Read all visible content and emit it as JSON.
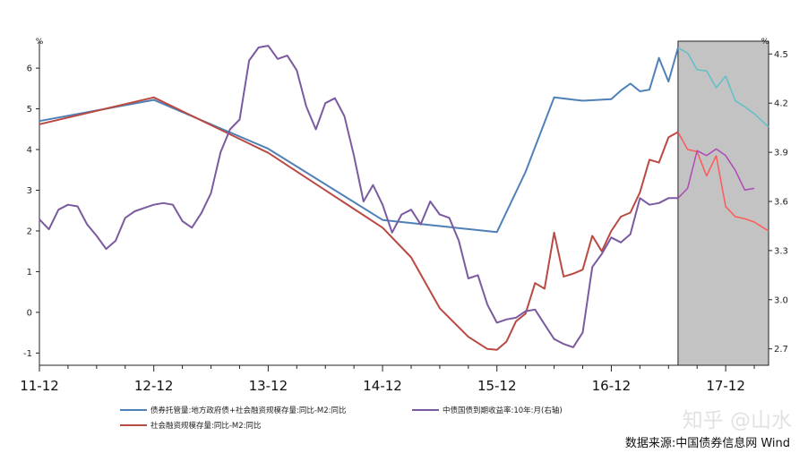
{
  "chart_data": {
    "type": "line",
    "x_labels": [
      "11-12",
      "12-12",
      "13-12",
      "14-12",
      "15-12",
      "16-12",
      "17-12"
    ],
    "left_axis": {
      "unit": "%",
      "min": -1.3,
      "max": 6.75,
      "ticks": [
        -1,
        0,
        1,
        2,
        3,
        4,
        5,
        6
      ]
    },
    "right_axis": {
      "unit": "%",
      "min": 2.6,
      "max": 4.6,
      "ticks": [
        2.7,
        3.0,
        3.3,
        3.6,
        3.9,
        4.2,
        4.5
      ]
    },
    "x_range": [
      0,
      76.5
    ],
    "shaded_from_x": 67,
    "colors": {
      "blue": "#4f81b8",
      "red": "#b94a43",
      "purple": "#7b5aa0",
      "shade": "#c3c3c3",
      "shade_blue": "#5fc0c8",
      "shade_red": "#ff5a5a",
      "shade_purple": "#b04ab5"
    },
    "series": [
      {
        "name": "债券托管量:地方政府债+社会融资规模存量:同比-M2:同比",
        "axis": "left",
        "color": "#4f81b8",
        "points": [
          [
            0,
            4.7
          ],
          [
            12,
            5.22
          ],
          [
            24,
            4.02
          ],
          [
            36,
            2.27
          ],
          [
            48,
            1.97
          ],
          [
            51,
            3.45
          ],
          [
            54,
            5.28
          ],
          [
            57,
            5.2
          ],
          [
            60,
            5.24
          ],
          [
            61,
            5.45
          ],
          [
            62,
            5.62
          ],
          [
            63,
            5.43
          ],
          [
            64,
            5.47
          ],
          [
            65,
            6.25
          ],
          [
            66,
            5.67
          ],
          [
            67,
            6.5
          ],
          [
            68,
            6.37
          ],
          [
            69,
            5.96
          ],
          [
            70,
            5.93
          ],
          [
            71,
            5.52
          ],
          [
            72,
            5.8
          ],
          [
            73,
            5.2
          ],
          [
            74,
            5.05
          ],
          [
            75,
            4.88
          ],
          [
            76.5,
            4.55
          ]
        ]
      },
      {
        "name": "社会融资规模存量:同比-M2:同比",
        "axis": "left",
        "color": "#b94a43",
        "points": [
          [
            0,
            4.62
          ],
          [
            12,
            5.28
          ],
          [
            24,
            3.92
          ],
          [
            36,
            2.08
          ],
          [
            39,
            1.35
          ],
          [
            42,
            0.1
          ],
          [
            45,
            -0.6
          ],
          [
            47,
            -0.9
          ],
          [
            48,
            -0.92
          ],
          [
            49,
            -0.72
          ],
          [
            50,
            -0.22
          ],
          [
            51,
            -0.03
          ],
          [
            52,
            0.72
          ],
          [
            53,
            0.58
          ],
          [
            54,
            1.96
          ],
          [
            55,
            0.88
          ],
          [
            56,
            0.95
          ],
          [
            57,
            1.05
          ],
          [
            58,
            1.88
          ],
          [
            59,
            1.5
          ],
          [
            60,
            2.0
          ],
          [
            61,
            2.35
          ],
          [
            62,
            2.45
          ],
          [
            63,
            2.95
          ],
          [
            64,
            3.75
          ],
          [
            65,
            3.68
          ],
          [
            66,
            4.3
          ],
          [
            67,
            4.43
          ],
          [
            68,
            4.0
          ],
          [
            69,
            3.95
          ],
          [
            70,
            3.35
          ],
          [
            71,
            3.85
          ],
          [
            72,
            2.6
          ],
          [
            73,
            2.35
          ],
          [
            74,
            2.3
          ],
          [
            75,
            2.22
          ],
          [
            76.5,
            2.0
          ]
        ]
      },
      {
        "name": "中债国债到期收益率:10年:月(右轴)",
        "axis": "right",
        "color": "#7b5aa0",
        "points": [
          [
            0,
            3.49
          ],
          [
            1,
            3.43
          ],
          [
            2,
            3.55
          ],
          [
            3,
            3.58
          ],
          [
            4,
            3.57
          ],
          [
            5,
            3.46
          ],
          [
            6,
            3.39
          ],
          [
            7,
            3.31
          ],
          [
            8,
            3.36
          ],
          [
            9,
            3.5
          ],
          [
            10,
            3.54
          ],
          [
            11,
            3.56
          ],
          [
            12,
            3.58
          ],
          [
            13,
            3.59
          ],
          [
            14,
            3.58
          ],
          [
            15,
            3.48
          ],
          [
            16,
            3.44
          ],
          [
            17,
            3.53
          ],
          [
            18,
            3.65
          ],
          [
            19,
            3.9
          ],
          [
            20,
            4.04
          ],
          [
            21,
            4.1
          ],
          [
            22,
            4.46
          ],
          [
            23,
            4.54
          ],
          [
            24,
            4.55
          ],
          [
            25,
            4.47
          ],
          [
            26,
            4.49
          ],
          [
            27,
            4.4
          ],
          [
            28,
            4.18
          ],
          [
            29,
            4.04
          ],
          [
            30,
            4.2
          ],
          [
            31,
            4.23
          ],
          [
            32,
            4.12
          ],
          [
            33,
            3.88
          ],
          [
            34,
            3.6
          ],
          [
            35,
            3.7
          ],
          [
            36,
            3.58
          ],
          [
            37,
            3.41
          ],
          [
            38,
            3.52
          ],
          [
            39,
            3.55
          ],
          [
            40,
            3.46
          ],
          [
            41,
            3.6
          ],
          [
            42,
            3.52
          ],
          [
            43,
            3.5
          ],
          [
            44,
            3.36
          ],
          [
            45,
            3.13
          ],
          [
            46,
            3.15
          ],
          [
            47,
            2.97
          ],
          [
            48,
            2.86
          ],
          [
            49,
            2.88
          ],
          [
            50,
            2.89
          ],
          [
            51,
            2.93
          ],
          [
            52,
            2.94
          ],
          [
            53,
            2.85
          ],
          [
            54,
            2.76
          ],
          [
            55,
            2.73
          ],
          [
            56,
            2.71
          ],
          [
            57,
            2.8
          ],
          [
            58,
            3.2
          ],
          [
            59,
            3.28
          ],
          [
            60,
            3.38
          ],
          [
            61,
            3.35
          ],
          [
            62,
            3.4
          ],
          [
            63,
            3.62
          ],
          [
            64,
            3.58
          ],
          [
            65,
            3.59
          ],
          [
            66,
            3.62
          ],
          [
            67,
            3.62
          ],
          [
            68,
            3.68
          ],
          [
            69,
            3.91
          ],
          [
            70,
            3.88
          ],
          [
            71,
            3.92
          ],
          [
            72,
            3.88
          ],
          [
            73,
            3.79
          ],
          [
            74,
            3.67
          ],
          [
            75,
            3.68
          ]
        ]
      }
    ]
  },
  "legend": {
    "row1_left": "债券托管量:地方政府债+社会融资规模存量:同比-M2:同比",
    "row1_right": "中债国债到期收益率:10年:月(右轴)",
    "row2_left": "社会融资规模存量:同比-M2:同比"
  },
  "source": "数据来源:中国债券信息网 Wind",
  "watermark": "知乎 @山水"
}
